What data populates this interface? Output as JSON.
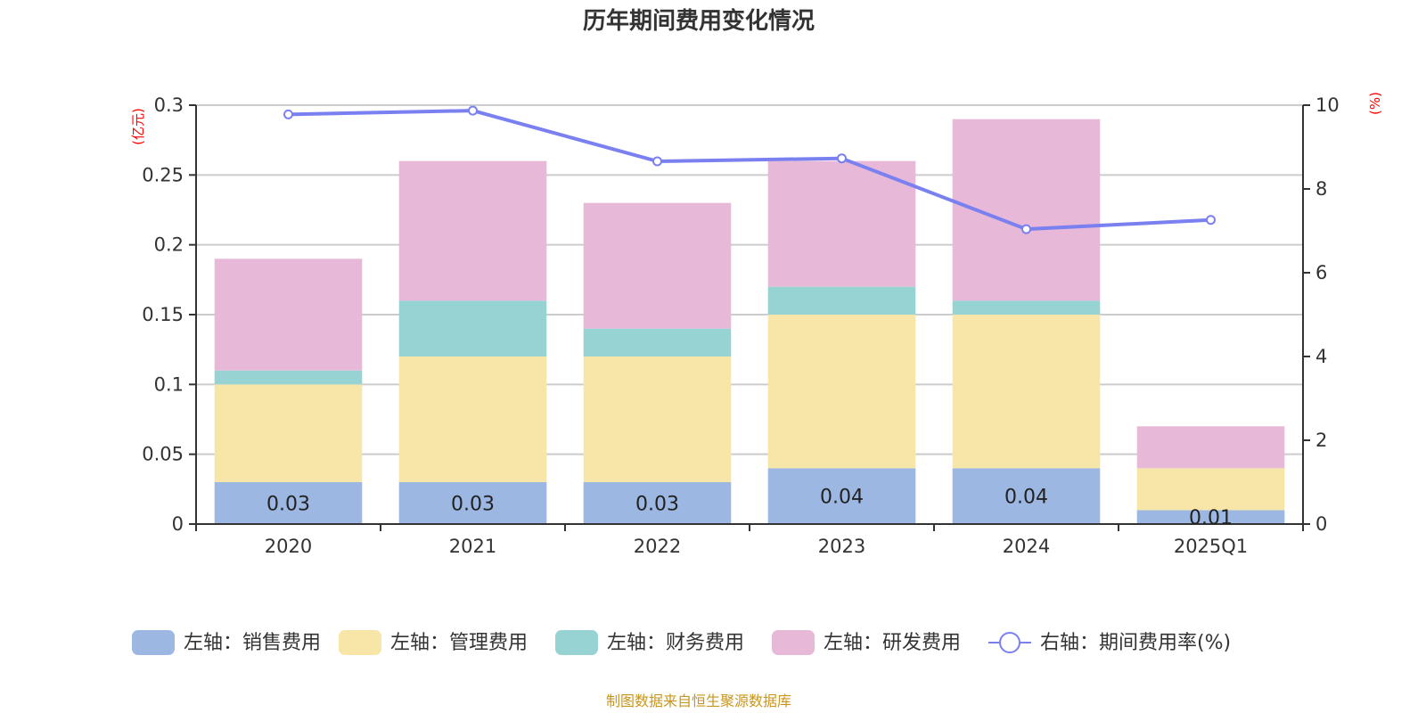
{
  "chart_data": {
    "type": "bar",
    "title": "历年期间费用变化情况",
    "categories": [
      "2020",
      "2021",
      "2022",
      "2023",
      "2024",
      "2025Q1"
    ],
    "left_axis": {
      "unit": "(亿元)",
      "ylim": [
        0,
        0.3
      ],
      "ticks": [
        "0",
        "0.05",
        "0.1",
        "0.15",
        "0.2",
        "0.25",
        "0.3"
      ],
      "tick_values": [
        0,
        0.05,
        0.1,
        0.15,
        0.2,
        0.25,
        0.3
      ]
    },
    "right_axis": {
      "unit": "(%)",
      "ylim": [
        0,
        10
      ],
      "ticks": [
        "0",
        "2",
        "4",
        "6",
        "8",
        "10"
      ],
      "tick_values": [
        0,
        2,
        4,
        6,
        8,
        10
      ]
    },
    "grid": true,
    "stacked": true,
    "series": [
      {
        "name": "左轴：销售费用",
        "type": "bar",
        "axis": "left",
        "color": "#9cb8e2",
        "values": [
          0.03,
          0.03,
          0.03,
          0.04,
          0.04,
          0.01
        ],
        "labels": [
          "0.03",
          "0.03",
          "0.03",
          "0.04",
          "0.04",
          "0.01"
        ]
      },
      {
        "name": "左轴：管理费用",
        "type": "bar",
        "axis": "left",
        "color": "#f8e6a9",
        "values": [
          0.07,
          0.09,
          0.09,
          0.11,
          0.11,
          0.03
        ]
      },
      {
        "name": "左轴：财务费用",
        "type": "bar",
        "axis": "left",
        "color": "#98d3d4",
        "values": [
          0.01,
          0.04,
          0.02,
          0.02,
          0.01,
          0.0
        ]
      },
      {
        "name": "左轴：研发费用",
        "type": "bar",
        "axis": "left",
        "color": "#e7b8d8",
        "values": [
          0.08,
          0.1,
          0.09,
          0.09,
          0.13,
          0.03
        ]
      },
      {
        "name": "右轴：期间费用率(%)",
        "type": "line",
        "axis": "right",
        "color": "#7a80f0",
        "values": [
          9.78,
          9.87,
          8.66,
          8.73,
          7.04,
          7.26
        ]
      }
    ],
    "legend_position": "bottom",
    "source": "制图数据来自恒生聚源数据库"
  }
}
